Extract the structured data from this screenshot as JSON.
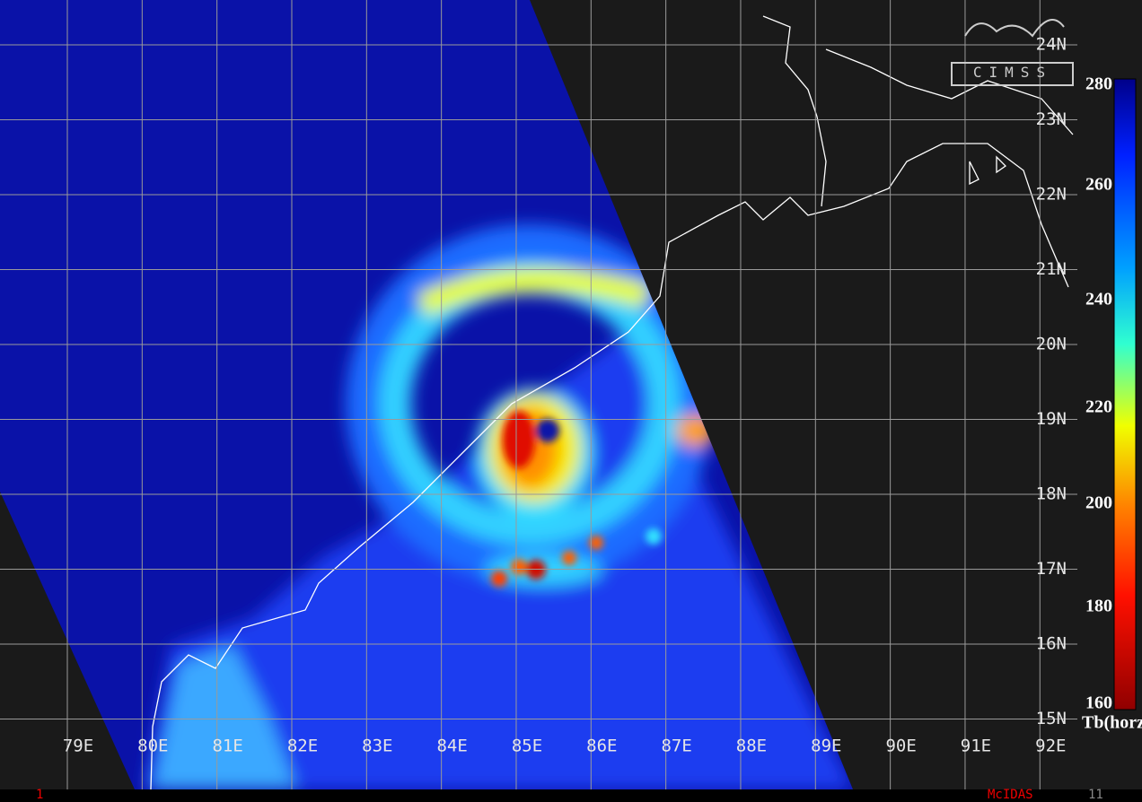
{
  "map": {
    "lat_labels": [
      "24N",
      "23N",
      "22N",
      "21N",
      "20N",
      "19N",
      "18N",
      "17N",
      "16N",
      "15N"
    ],
    "lon_labels": [
      "79E",
      "80E",
      "81E",
      "82E",
      "83E",
      "84E",
      "85E",
      "86E",
      "87E",
      "88E",
      "89E",
      "90E",
      "91E",
      "92E"
    ],
    "logo": "CIMSS",
    "colorbar": {
      "labels": [
        280,
        260,
        240,
        220,
        200,
        180,
        160
      ],
      "title": "Tb(horz)"
    },
    "footer": {
      "left": "1",
      "center": "McIDAS",
      "right": "11"
    }
  }
}
